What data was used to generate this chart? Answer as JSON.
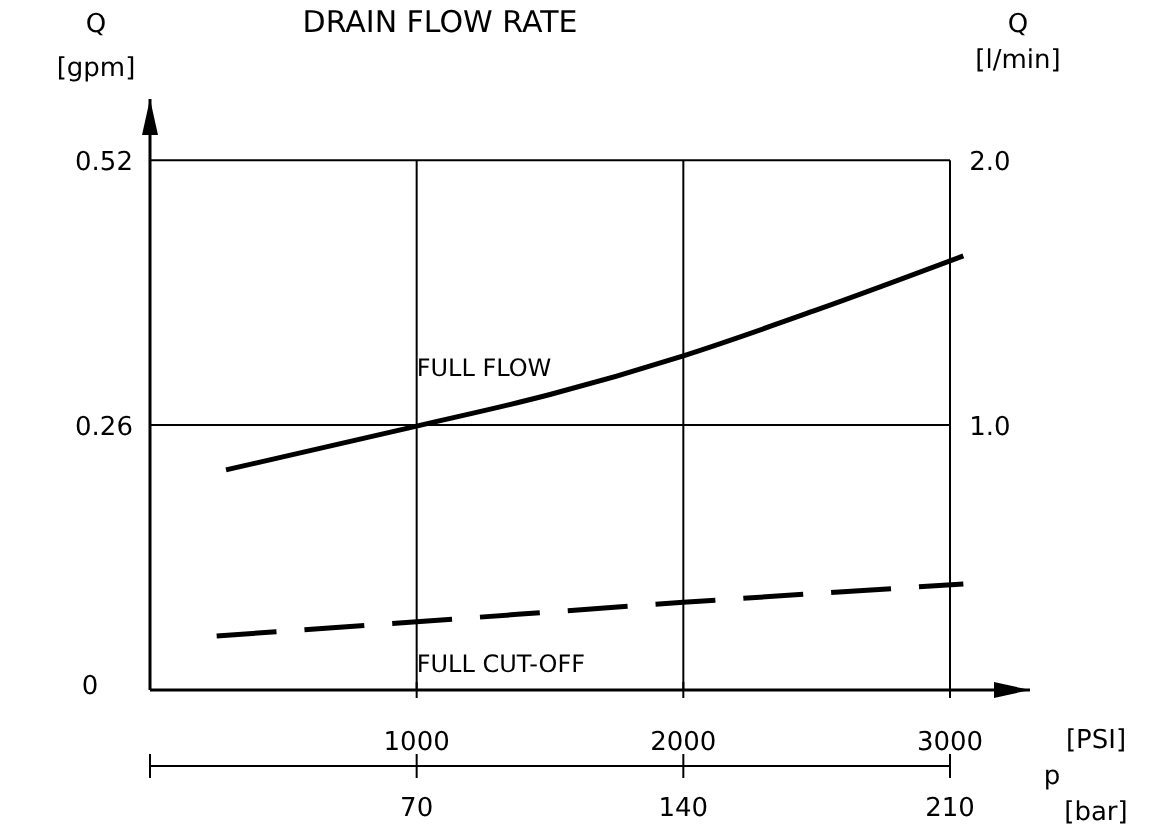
{
  "chart_data": {
    "type": "line",
    "title": "DRAIN FLOW RATE",
    "xlabel": "[PSI]",
    "x2label": "[bar]",
    "ylabel": "Q [gpm]",
    "y2label": "Q [l/min]",
    "annotations": [
      "p"
    ],
    "xlim": [
      0,
      3300
    ],
    "xticks": [
      1000,
      2000,
      3000
    ],
    "x2lim": [
      0,
      210
    ],
    "x2ticks": [
      70,
      140,
      210
    ],
    "ylim": [
      0,
      0.58
    ],
    "yticks": [
      0,
      0.26,
      0.52
    ],
    "y2lim": [
      0,
      2
    ],
    "y2ticks": [
      {
        "value": 1,
        "label": "1.0"
      },
      {
        "value": 2,
        "label": "2.0"
      }
    ],
    "grid": true,
    "marker": "none",
    "series": [
      {
        "name": "FULL FLOW",
        "color": "#000000",
        "line_style": "solid",
        "x": [
          285,
          1000,
          1500,
          2000,
          2500,
          3050
        ],
        "values": [
          0.216,
          0.259,
          0.29,
          0.328,
          0.373,
          0.426
        ]
      },
      {
        "name": "FULL CUT-OFF",
        "color": "#000000",
        "line_style": "dashed",
        "x": [
          250,
          1000,
          2000,
          3050
        ],
        "values": [
          0.053,
          0.067,
          0.086,
          0.104
        ]
      }
    ]
  }
}
